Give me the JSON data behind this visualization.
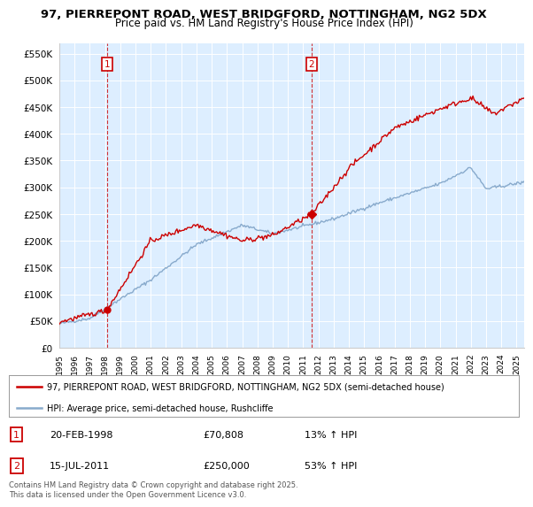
{
  "title": "97, PIERREPONT ROAD, WEST BRIDGFORD, NOTTINGHAM, NG2 5DX",
  "subtitle": "Price paid vs. HM Land Registry's House Price Index (HPI)",
  "ylim": [
    0,
    570000
  ],
  "yticks": [
    0,
    50000,
    100000,
    150000,
    200000,
    250000,
    300000,
    350000,
    400000,
    450000,
    500000,
    550000
  ],
  "ytick_labels": [
    "£0",
    "£50K",
    "£100K",
    "£150K",
    "£200K",
    "£250K",
    "£300K",
    "£350K",
    "£400K",
    "£450K",
    "£500K",
    "£550K"
  ],
  "background_color": "#ffffff",
  "plot_bg_color": "#ddeeff",
  "grid_color": "#ffffff",
  "sale1_date": 1998.13,
  "sale1_price": 70808,
  "sale1_label": "1",
  "sale2_date": 2011.54,
  "sale2_price": 250000,
  "sale2_label": "2",
  "red_line_color": "#cc0000",
  "blue_line_color": "#88aacc",
  "marker_color": "#cc0000",
  "legend_label_red": "97, PIERREPONT ROAD, WEST BRIDGFORD, NOTTINGHAM, NG2 5DX (semi-detached house)",
  "legend_label_blue": "HPI: Average price, semi-detached house, Rushcliffe",
  "table_row1": [
    "1",
    "20-FEB-1998",
    "£70,808",
    "13% ↑ HPI"
  ],
  "table_row2": [
    "2",
    "15-JUL-2011",
    "£250,000",
    "53% ↑ HPI"
  ],
  "footer": "Contains HM Land Registry data © Crown copyright and database right 2025.\nThis data is licensed under the Open Government Licence v3.0.",
  "title_fontsize": 9.5,
  "subtitle_fontsize": 8.5
}
